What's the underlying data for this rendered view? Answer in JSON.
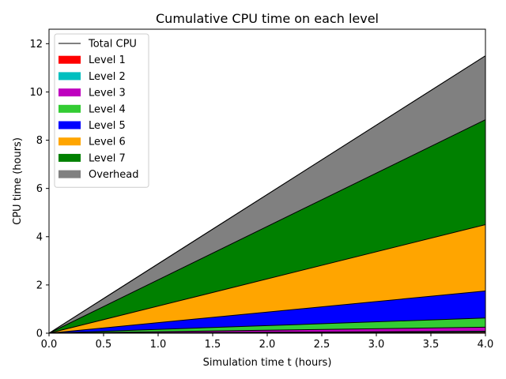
{
  "chart_data": {
    "type": "area",
    "title": "Cumulative CPU time on each level",
    "xlabel": "Simulation time t (hours)",
    "ylabel": "CPU time (hours)",
    "xlim": [
      0,
      4
    ],
    "ylim": [
      0,
      12.6
    ],
    "x_ticks": [
      "0.0",
      "0.5",
      "1.0",
      "1.5",
      "2.0",
      "2.5",
      "3.0",
      "3.5",
      "4.0"
    ],
    "y_ticks": [
      "0",
      "2",
      "4",
      "6",
      "8",
      "10",
      "12"
    ],
    "x": [
      0,
      4
    ],
    "stacked": true,
    "grid": false,
    "legend_position": "top-left",
    "total_line": {
      "name": "Total CPU",
      "color": "#000000",
      "values": [
        0,
        11.5
      ]
    },
    "series": [
      {
        "name": "Level 1",
        "color": "#ff0000",
        "values": [
          0,
          0.04
        ]
      },
      {
        "name": "Level 2",
        "color": "#00bfbf",
        "values": [
          0,
          0.04
        ]
      },
      {
        "name": "Level 3",
        "color": "#bf00bf",
        "values": [
          0,
          0.17
        ]
      },
      {
        "name": "Level 4",
        "color": "#33cc33",
        "values": [
          0,
          0.38
        ]
      },
      {
        "name": "Level 5",
        "color": "#0000ff",
        "values": [
          0,
          1.12
        ]
      },
      {
        "name": "Level 6",
        "color": "#ffa500",
        "values": [
          0,
          2.75
        ]
      },
      {
        "name": "Level 7",
        "color": "#008000",
        "values": [
          0,
          4.35
        ]
      },
      {
        "name": "Overhead",
        "color": "#808080",
        "values": [
          0,
          2.65
        ]
      }
    ]
  }
}
